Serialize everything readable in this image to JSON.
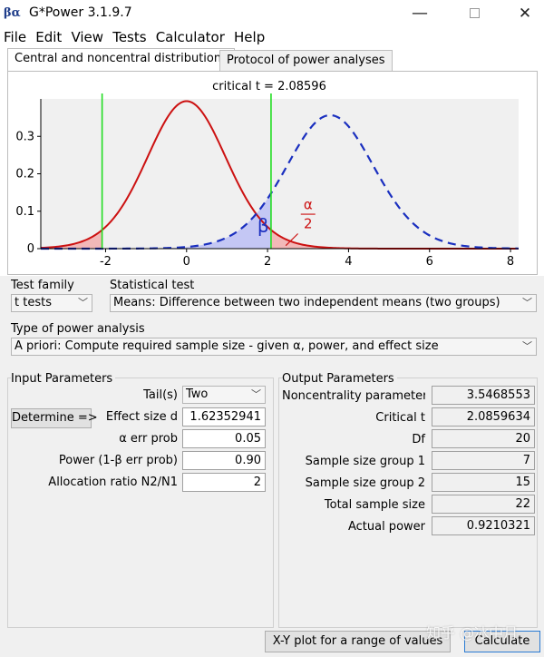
{
  "window": {
    "title": "G*Power 3.1.9.7",
    "icon_text": "βα",
    "min_glyph": "—",
    "close_glyph": "✕"
  },
  "menu": [
    "File",
    "Edit",
    "View",
    "Tests",
    "Calculator",
    "Help"
  ],
  "tabs": [
    "Central and noncentral distributions",
    "Protocol of power analyses"
  ],
  "plot": {
    "critical_label": "critical t = 2.08596",
    "beta_label": "β",
    "alpha_num": "α",
    "alpha_den": "2",
    "critical_t": 2.08596,
    "noncentrality": 3.5468553,
    "df": 20,
    "x_ticks": [
      "-2",
      "0",
      "2",
      "4",
      "6",
      "8"
    ],
    "y_ticks": [
      "0",
      "0.1",
      "0.2",
      "0.3"
    ],
    "xlim": [
      -3.6,
      8.2
    ],
    "ylim": [
      0,
      0.4
    ],
    "colors": {
      "central": "#cc1111",
      "noncentral": "#1a2fbf",
      "critical": "#22dd22",
      "alpha_fill": "#f2b8b8",
      "beta_fill": "#bcc0f4",
      "bg": "#f0f0f0"
    }
  },
  "test_family": {
    "label": "Test family",
    "value": "t tests"
  },
  "statistical_test": {
    "label": "Statistical test",
    "value": "Means: Difference between two independent means (two groups)"
  },
  "power_analysis": {
    "label": "Type of power analysis",
    "value": "A priori: Compute required sample size - given α, power, and effect size"
  },
  "input": {
    "title": "Input Parameters",
    "tails_label": "Tail(s)",
    "tails_value": "Two",
    "determine_label": "Determine =>",
    "effect_label": "Effect size d",
    "effect_value": "1.62352941",
    "alpha_label": "α err prob",
    "alpha_value": "0.05",
    "power_label": "Power (1-β err prob)",
    "power_value": "0.90",
    "alloc_label": "Allocation ratio N2/N1",
    "alloc_value": "2"
  },
  "output": {
    "title": "Output Parameters",
    "rows": [
      {
        "label": "Noncentrality parameter δ",
        "value": "3.5468553"
      },
      {
        "label": "Critical t",
        "value": "2.0859634"
      },
      {
        "label": "Df",
        "value": "20"
      },
      {
        "label": "Sample size group 1",
        "value": "7"
      },
      {
        "label": "Sample size group 2",
        "value": "15"
      },
      {
        "label": "Total sample size",
        "value": "22"
      },
      {
        "label": "Actual power",
        "value": "0.9210321"
      }
    ]
  },
  "buttons": {
    "xy_plot": "X-Y plot for a range of values",
    "calculate": "Calculate"
  },
  "watermark": "知乎 @冰中月"
}
